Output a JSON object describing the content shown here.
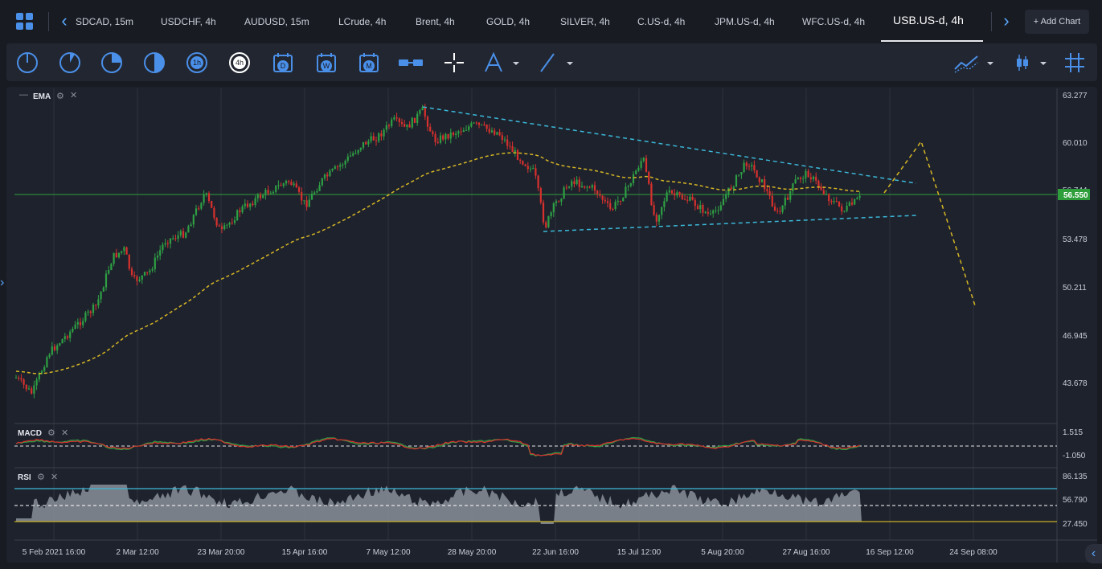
{
  "tabs": [
    {
      "label": "SDCAD, 15m"
    },
    {
      "label": "USDCHF, 4h"
    },
    {
      "label": "AUDUSD, 15m"
    },
    {
      "label": "LCrude, 4h"
    },
    {
      "label": "Brent, 4h"
    },
    {
      "label": "GOLD, 4h"
    },
    {
      "label": "SILVER, 4h"
    },
    {
      "label": "C.US-d, 4h"
    },
    {
      "label": "JPM.US-d, 4h"
    },
    {
      "label": "WFC.US-d, 4h"
    },
    {
      "label": "USB.US-d, 4h",
      "active": true
    }
  ],
  "add_chart": {
    "icon": "+",
    "label": "Add Chart"
  },
  "toolbar": {
    "timeframes": [
      {
        "name": "1m-icon",
        "label": ""
      },
      {
        "name": "5m-icon",
        "label": ""
      },
      {
        "name": "15m-icon",
        "label": ""
      },
      {
        "name": "30m-icon",
        "label": ""
      },
      {
        "name": "1h-icon",
        "label": "1h"
      },
      {
        "name": "4h-icon",
        "label": "4h",
        "active": true
      },
      {
        "name": "daily-icon",
        "label": "D"
      },
      {
        "name": "weekly-icon",
        "label": "W"
      },
      {
        "name": "monthly-icon",
        "label": "M"
      }
    ]
  },
  "indicators": {
    "ema": {
      "label": "EMA"
    },
    "macd": {
      "label": "MACD",
      "levels": [
        "1.515",
        "-1.050"
      ]
    },
    "rsi": {
      "label": "RSI",
      "levels": [
        "86.135",
        "56.790",
        "27.450"
      ]
    }
  },
  "chart_data": {
    "type": "candlestick",
    "symbol": "USB.US-d, 4h",
    "price_axis": [
      "63.277",
      "60.010",
      "56.744",
      "53.478",
      "50.211",
      "46.945",
      "43.678"
    ],
    "last_price": "56.550",
    "x_ticks": [
      "5 Feb 2021 16:00",
      "2 Mar 12:00",
      "23 Mar 20:00",
      "15 Apr 16:00",
      "7 May 12:00",
      "28 May 20:00",
      "22 Jun 16:00",
      "15 Jul 12:00",
      "5 Aug 20:00",
      "27 Aug 16:00",
      "16 Sep 12:00",
      "24 Sep 08:00"
    ],
    "colors": {
      "up": "#2ea043",
      "down": "#d8312d",
      "ema": "#d6b624",
      "trend": "#3bb8d8",
      "last_price_line": "#2e9e3a",
      "rsi_band": "#3bb8d8",
      "rsi_low": "#c8b020"
    }
  }
}
